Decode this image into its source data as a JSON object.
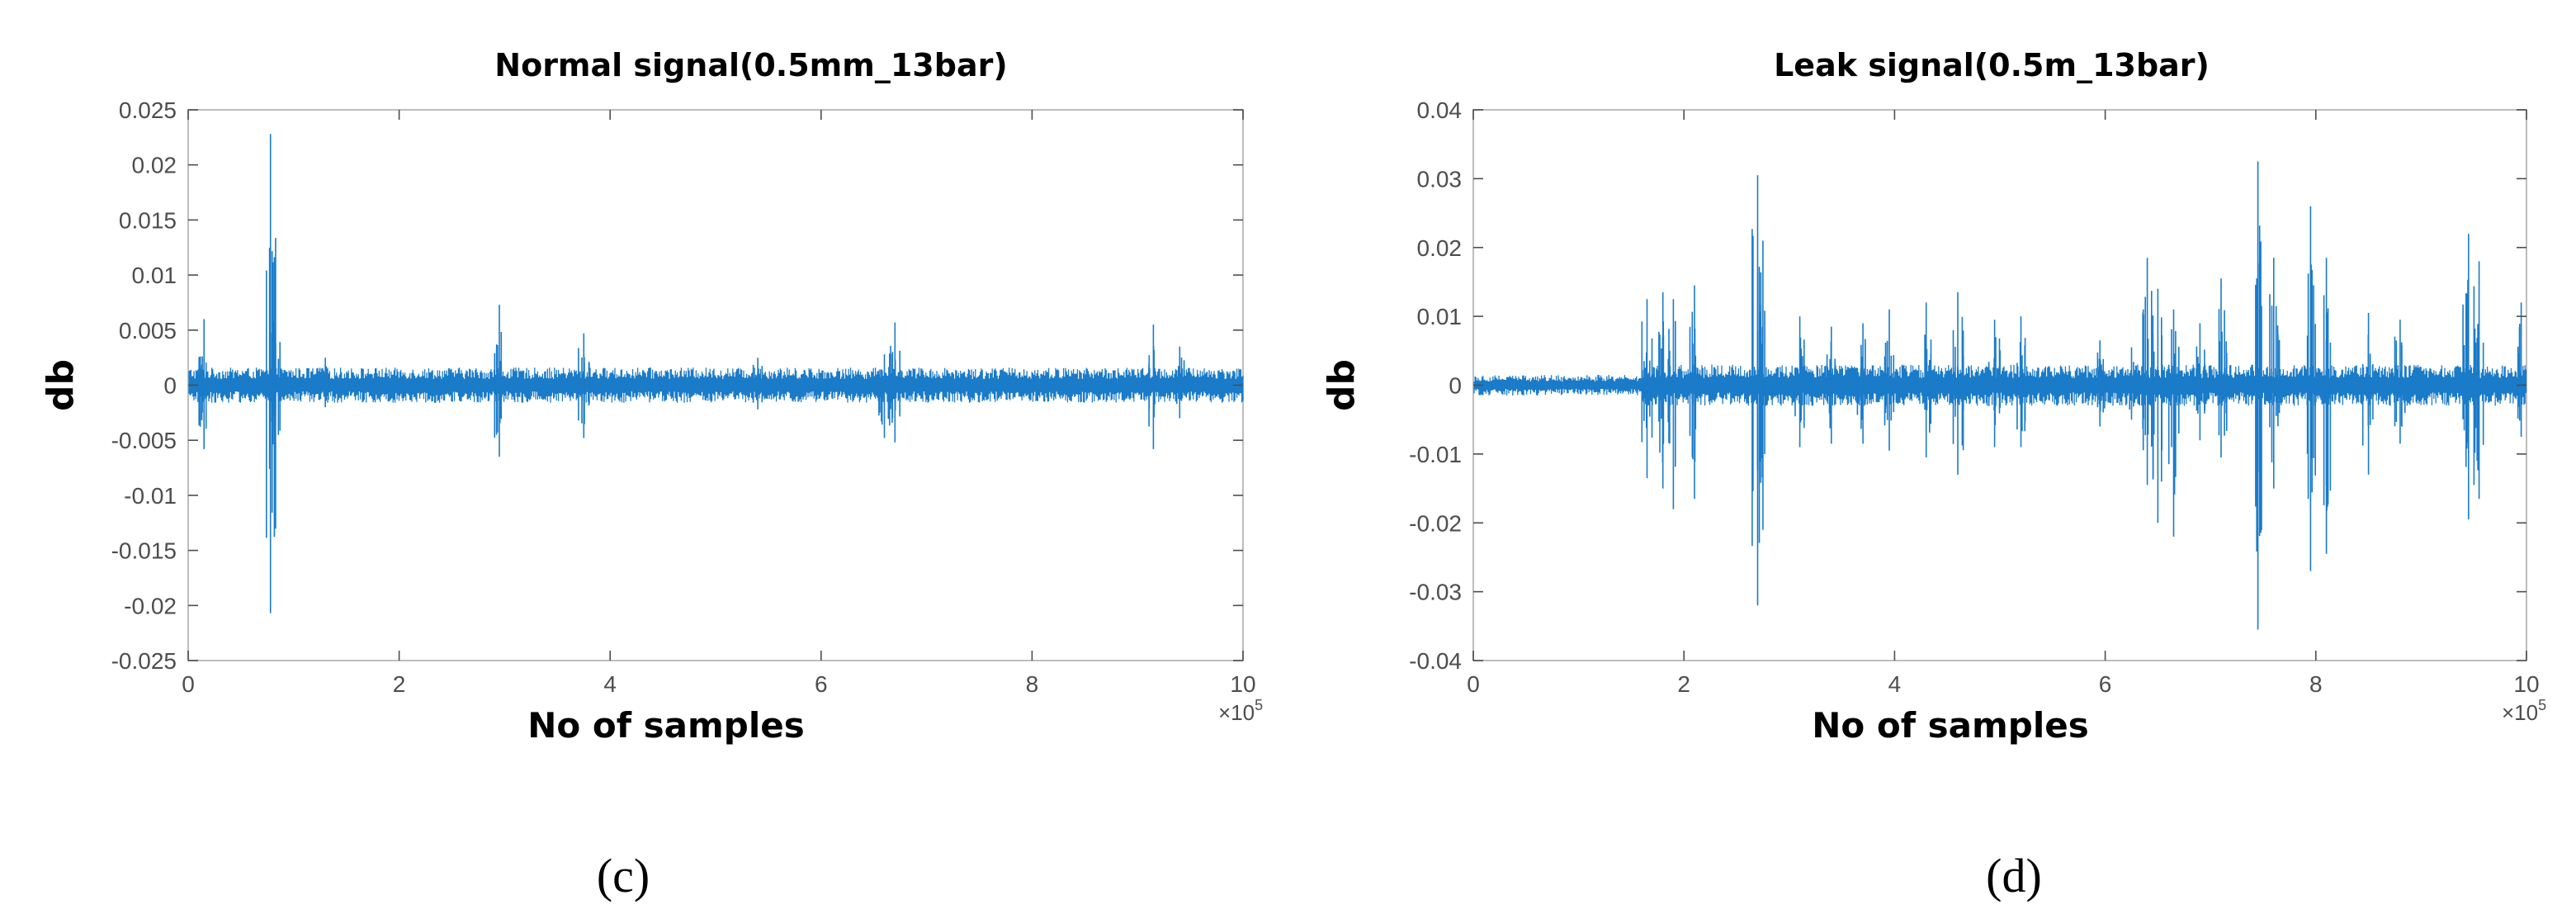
{
  "chart_data": [
    {
      "type": "line",
      "title": "Normal signal(0.5mm_13bar)",
      "xlabel": "No  of samples",
      "ylabel": "db",
      "x_multiplier": "×10",
      "x_multiplier_exp": "5",
      "xlim": [
        0,
        10
      ],
      "ylim": [
        -0.025,
        0.025
      ],
      "x_ticks": [
        0,
        2,
        4,
        6,
        8,
        10
      ],
      "x_tick_labels": [
        "0",
        "2",
        "4",
        "6",
        "8",
        "10"
      ],
      "y_ticks": [
        0.025,
        0.02,
        0.015,
        0.01,
        0.005,
        0,
        -0.005,
        -0.01,
        -0.015,
        -0.02,
        -0.025
      ],
      "y_tick_labels": [
        "0.025",
        "0.02",
        "0.015",
        "0.01",
        "0.005",
        "0",
        "-0.005",
        "-0.01",
        "-0.015",
        "-0.02",
        "-0.025"
      ],
      "grid": false,
      "color": "#1a7bc9",
      "panel_label": "(c)",
      "baseline_band": {
        "x_start": 0,
        "x_end": 10,
        "upper": 0.0016,
        "lower": -0.0016
      },
      "series": [
        {
          "spikes": [
            {
              "x": 0.15,
              "hi": 0.006,
              "lo": -0.0058
            },
            {
              "x": 0.78,
              "hi": 0.0228,
              "lo": -0.0207
            },
            {
              "x": 0.82,
              "hi": 0.0085,
              "lo": -0.007
            },
            {
              "x": 1.3,
              "hi": 0.0025,
              "lo": -0.002
            },
            {
              "x": 2.95,
              "hi": 0.0073,
              "lo": -0.0065
            },
            {
              "x": 3.75,
              "hi": 0.0047,
              "lo": -0.0048
            },
            {
              "x": 5.4,
              "hi": 0.0025,
              "lo": -0.0022
            },
            {
              "x": 6.6,
              "hi": 0.0028,
              "lo": -0.0048
            },
            {
              "x": 6.7,
              "hi": 0.0057,
              "lo": -0.0052
            },
            {
              "x": 9.15,
              "hi": 0.0055,
              "lo": -0.0058
            },
            {
              "x": 9.4,
              "hi": 0.0035,
              "lo": -0.003
            }
          ]
        }
      ]
    },
    {
      "type": "line",
      "title": "Leak signal(0.5m_13bar)",
      "xlabel": "No  of samples",
      "ylabel": "db",
      "x_multiplier": "×10",
      "x_multiplier_exp": "5",
      "xlim": [
        0,
        10
      ],
      "ylim": [
        -0.04,
        0.04
      ],
      "x_ticks": [
        0,
        2,
        4,
        6,
        8,
        10
      ],
      "x_tick_labels": [
        "0",
        "2",
        "4",
        "6",
        "8",
        "10"
      ],
      "y_ticks": [
        0.04,
        0.03,
        0.02,
        0.01,
        0,
        -0.01,
        -0.02,
        -0.03,
        -0.04
      ],
      "y_tick_labels": [
        "0.04",
        "0.03",
        "0.02",
        "0.01",
        "0",
        "-0.01",
        "-0.02",
        "-0.03",
        "-0.04"
      ],
      "grid": false,
      "color": "#1a7bc9",
      "panel_label": "(d)",
      "baseline_band": {
        "x_start": 0,
        "x_end": 1.6,
        "upper": 0.0015,
        "lower": -0.0015,
        "x_start2": 1.6,
        "x_end2": 10,
        "upper2": 0.003,
        "lower2": -0.003
      },
      "series": [
        {
          "spikes": [
            {
              "x": 1.65,
              "hi": 0.0125,
              "lo": -0.0135
            },
            {
              "x": 1.8,
              "hi": 0.0135,
              "lo": -0.015
            },
            {
              "x": 1.9,
              "hi": 0.0125,
              "lo": -0.018
            },
            {
              "x": 2.1,
              "hi": 0.0145,
              "lo": -0.0165
            },
            {
              "x": 2.7,
              "hi": 0.0305,
              "lo": -0.032
            },
            {
              "x": 2.75,
              "hi": 0.021,
              "lo": -0.021
            },
            {
              "x": 3.1,
              "hi": 0.01,
              "lo": -0.009
            },
            {
              "x": 3.4,
              "hi": 0.0085,
              "lo": -0.0085
            },
            {
              "x": 3.7,
              "hi": 0.009,
              "lo": -0.0085
            },
            {
              "x": 3.95,
              "hi": 0.011,
              "lo": -0.0095
            },
            {
              "x": 4.3,
              "hi": 0.012,
              "lo": -0.0105
            },
            {
              "x": 4.6,
              "hi": 0.0135,
              "lo": -0.013
            },
            {
              "x": 4.95,
              "hi": 0.0095,
              "lo": -0.009
            },
            {
              "x": 5.2,
              "hi": 0.01,
              "lo": -0.009
            },
            {
              "x": 5.95,
              "hi": 0.0065,
              "lo": -0.006
            },
            {
              "x": 6.25,
              "hi": 0.0055,
              "lo": -0.005
            },
            {
              "x": 6.4,
              "hi": 0.0185,
              "lo": -0.0145
            },
            {
              "x": 6.5,
              "hi": 0.014,
              "lo": -0.02
            },
            {
              "x": 6.65,
              "hi": 0.011,
              "lo": -0.022
            },
            {
              "x": 6.9,
              "hi": 0.009,
              "lo": -0.008
            },
            {
              "x": 7.1,
              "hi": 0.0155,
              "lo": -0.0105
            },
            {
              "x": 7.45,
              "hi": 0.0325,
              "lo": -0.0355
            },
            {
              "x": 7.6,
              "hi": 0.0185,
              "lo": -0.015
            },
            {
              "x": 7.95,
              "hi": 0.026,
              "lo": -0.027
            },
            {
              "x": 8.1,
              "hi": 0.0185,
              "lo": -0.0245
            },
            {
              "x": 8.5,
              "hi": 0.0105,
              "lo": -0.013
            },
            {
              "x": 8.8,
              "hi": 0.0095,
              "lo": -0.0085
            },
            {
              "x": 9.45,
              "hi": 0.022,
              "lo": -0.0195
            },
            {
              "x": 9.55,
              "hi": 0.018,
              "lo": -0.0165
            },
            {
              "x": 9.95,
              "hi": 0.012,
              "lo": -0.0075
            }
          ]
        }
      ]
    }
  ]
}
